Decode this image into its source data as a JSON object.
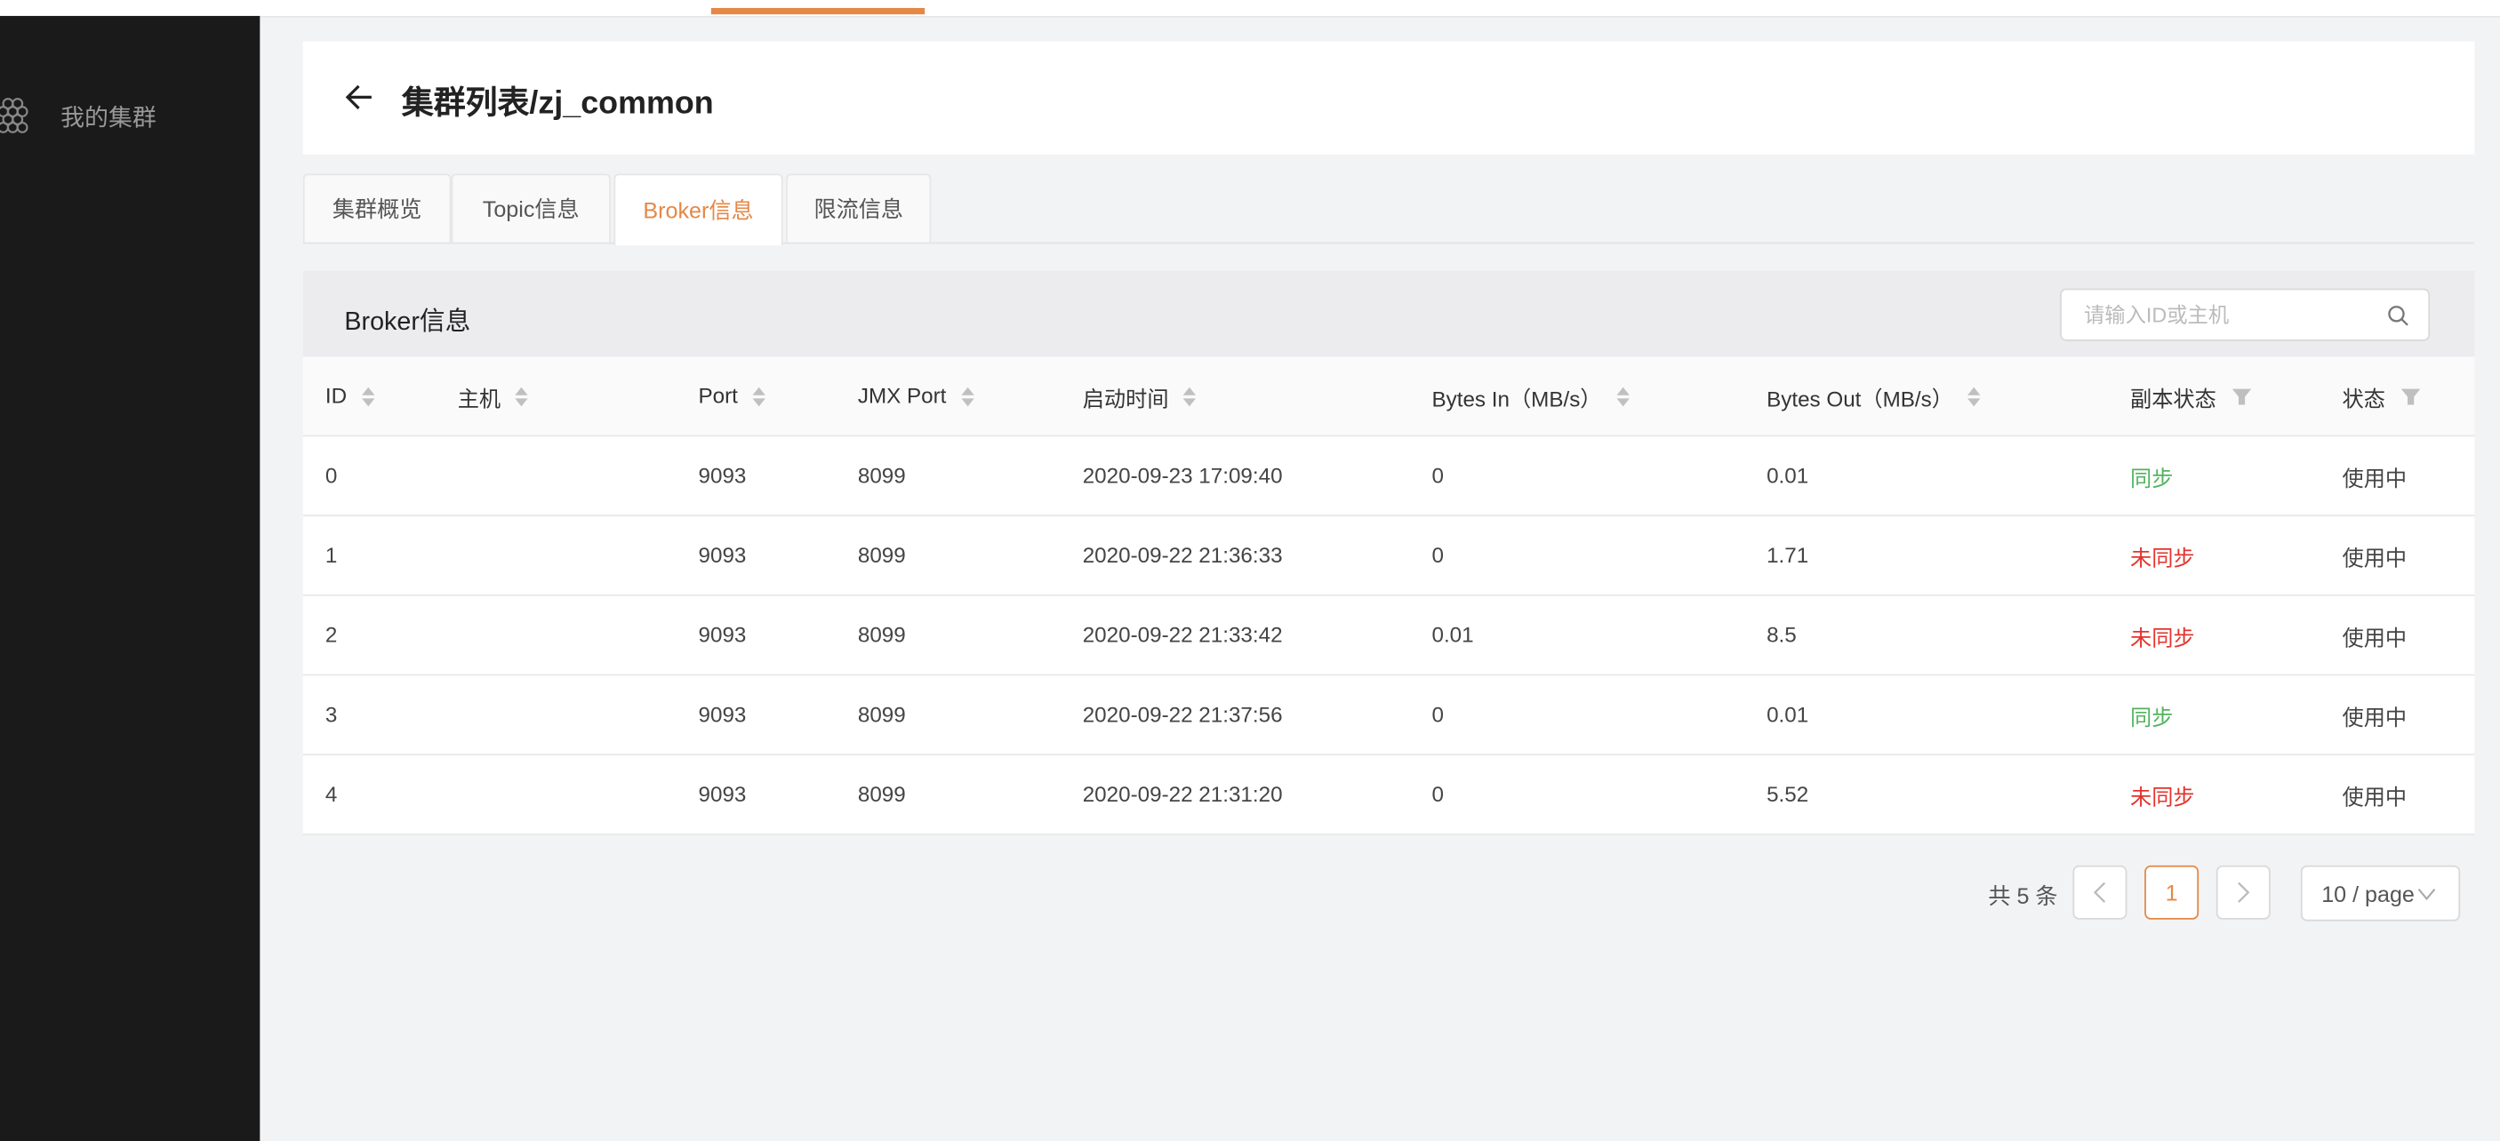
{
  "sidebar": {
    "items": [
      {
        "label": "我的集群",
        "icon": "hexagon-cluster-icon"
      }
    ]
  },
  "header": {
    "title": "集群列表/zj_common",
    "back_icon": "arrow-left-icon"
  },
  "tabs": [
    {
      "label": "集群概览"
    },
    {
      "label": "Topic信息"
    },
    {
      "label": "Broker信息",
      "active": true
    },
    {
      "label": "限流信息"
    }
  ],
  "section": {
    "title": "Broker信息",
    "search_placeholder": "请输入ID或主机",
    "search_value": ""
  },
  "table": {
    "columns": [
      "ID",
      "主机",
      "Port",
      "JMX Port",
      "启动时间",
      "Bytes In（MB/s）",
      "Bytes Out（MB/s）",
      "副本状态",
      "状态"
    ],
    "rows": [
      {
        "id": "0",
        "host": "",
        "port": "9093",
        "jmx": "8099",
        "start": "2020-09-23 17:09:40",
        "in": "0",
        "out": "0.01",
        "replica": "同步",
        "replica_ok": true,
        "status": "使用中"
      },
      {
        "id": "1",
        "host": "",
        "port": "9093",
        "jmx": "8099",
        "start": "2020-09-22 21:36:33",
        "in": "0",
        "out": "1.71",
        "replica": "未同步",
        "replica_ok": false,
        "status": "使用中"
      },
      {
        "id": "2",
        "host": "",
        "port": "9093",
        "jmx": "8099",
        "start": "2020-09-22 21:33:42",
        "in": "0.01",
        "out": "8.5",
        "replica": "未同步",
        "replica_ok": false,
        "status": "使用中"
      },
      {
        "id": "3",
        "host": "",
        "port": "9093",
        "jmx": "8099",
        "start": "2020-09-22 21:37:56",
        "in": "0",
        "out": "0.01",
        "replica": "同步",
        "replica_ok": true,
        "status": "使用中"
      },
      {
        "id": "4",
        "host": "",
        "port": "9093",
        "jmx": "8099",
        "start": "2020-09-22 21:31:20",
        "in": "0",
        "out": "5.52",
        "replica": "未同步",
        "replica_ok": false,
        "status": "使用中"
      }
    ]
  },
  "pagination": {
    "total": "共 5 条",
    "current": "1",
    "page_size": "10 / page"
  },
  "colors": {
    "accent": "#e58846",
    "ok": "#52b35e",
    "bad": "#e5322d",
    "sidebar": "#1a1a1a"
  }
}
